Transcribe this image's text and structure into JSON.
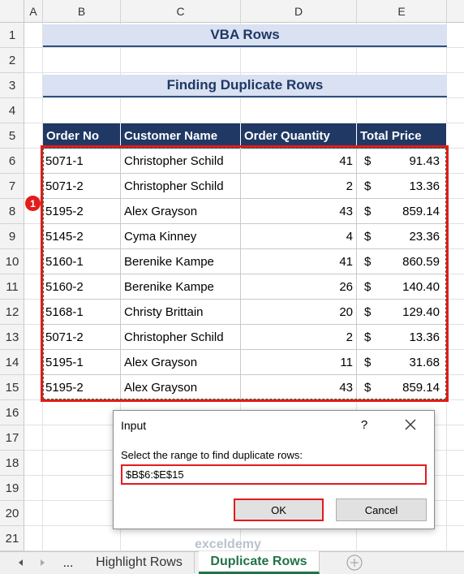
{
  "columns": [
    "A",
    "B",
    "C",
    "D",
    "E"
  ],
  "row_numbers": [
    1,
    2,
    3,
    4,
    5,
    6,
    7,
    8,
    9,
    10,
    11,
    12,
    13,
    14,
    15,
    16,
    17,
    18,
    19,
    20,
    21
  ],
  "sheet": {
    "title": "VBA Rows",
    "subtitle": "Finding Duplicate Rows",
    "table": {
      "headers": [
        "Order No",
        "Customer Name",
        "Order Quantity",
        "Total Price"
      ],
      "currency": "$",
      "rows": [
        [
          "5071-1",
          "Christopher Schild",
          41,
          "91.43"
        ],
        [
          "5071-2",
          "Christopher Schild",
          2,
          "13.36"
        ],
        [
          "5195-2",
          "Alex Grayson",
          43,
          "859.14"
        ],
        [
          "5145-2",
          "Cyma Kinney",
          4,
          "23.36"
        ],
        [
          "5160-1",
          "Berenike Kampe",
          41,
          "860.59"
        ],
        [
          "5160-2",
          "Berenike Kampe",
          26,
          "140.40"
        ],
        [
          "5168-1",
          "Christy Brittain",
          20,
          "129.40"
        ],
        [
          "5071-2",
          "Christopher Schild",
          2,
          "13.36"
        ],
        [
          "5195-1",
          "Alex Grayson",
          11,
          "31.68"
        ],
        [
          "5195-2",
          "Alex Grayson",
          43,
          "859.14"
        ]
      ]
    }
  },
  "marker": "1",
  "dialog": {
    "title": "Input",
    "help": "?",
    "label": "Select the range to find duplicate rows:",
    "input": "$B$6:$E$15",
    "ok": "OK",
    "cancel": "Cancel"
  },
  "tabs": {
    "more": "...",
    "items": [
      "Highlight Rows",
      "Duplicate Rows"
    ]
  },
  "watermark": "exceldemy"
}
